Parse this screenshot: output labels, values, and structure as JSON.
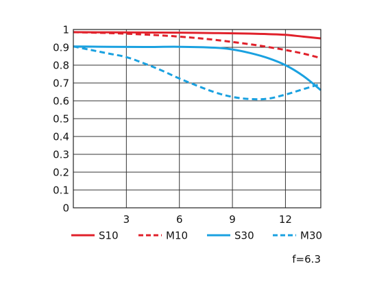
{
  "chart_data": {
    "type": "line",
    "title": "",
    "xlabel": "",
    "ylabel": "",
    "xlim": [
      0,
      14
    ],
    "ylim": [
      0,
      1
    ],
    "xticks": [
      3,
      6,
      9,
      12
    ],
    "yticks": [
      0,
      0.1,
      0.2,
      0.3,
      0.4,
      0.5,
      0.6,
      0.7,
      0.8,
      0.9,
      1
    ],
    "ytick_labels": [
      "0",
      "0.1",
      "0.2",
      "0.3",
      "0.4",
      "0.5",
      "0.6",
      "0.7",
      "0.8",
      "0.9",
      "1"
    ],
    "xtick_labels": [
      "3",
      "6",
      "9",
      "12"
    ],
    "grid": true,
    "legend_position": "bottom",
    "annotation": "f=6.3",
    "series": [
      {
        "name": "S10",
        "color": "#e0202a",
        "style": "solid",
        "x": [
          0,
          2,
          4,
          6,
          8,
          10,
          11,
          12,
          13,
          14
        ],
        "y": [
          0.985,
          0.984,
          0.983,
          0.982,
          0.98,
          0.977,
          0.974,
          0.97,
          0.96,
          0.95
        ]
      },
      {
        "name": "M10",
        "color": "#e0202a",
        "style": "dashed",
        "x": [
          0,
          2,
          4,
          6,
          8,
          10,
          11,
          12,
          13,
          14
        ],
        "y": [
          0.985,
          0.98,
          0.972,
          0.96,
          0.942,
          0.917,
          0.902,
          0.885,
          0.865,
          0.84
        ]
      },
      {
        "name": "S30",
        "color": "#1aa1e0",
        "style": "solid",
        "x": [
          0,
          2,
          4,
          6,
          8,
          9,
          10,
          11,
          12,
          13,
          14
        ],
        "y": [
          0.905,
          0.903,
          0.902,
          0.903,
          0.898,
          0.888,
          0.868,
          0.84,
          0.8,
          0.74,
          0.66
        ]
      },
      {
        "name": "M30",
        "color": "#1aa1e0",
        "style": "dashed",
        "x": [
          0,
          1,
          2,
          3,
          4,
          5,
          6,
          7,
          8,
          9,
          10,
          11,
          12,
          13,
          14
        ],
        "y": [
          0.905,
          0.885,
          0.865,
          0.845,
          0.81,
          0.77,
          0.725,
          0.685,
          0.648,
          0.622,
          0.61,
          0.612,
          0.635,
          0.665,
          0.695
        ]
      }
    ]
  }
}
